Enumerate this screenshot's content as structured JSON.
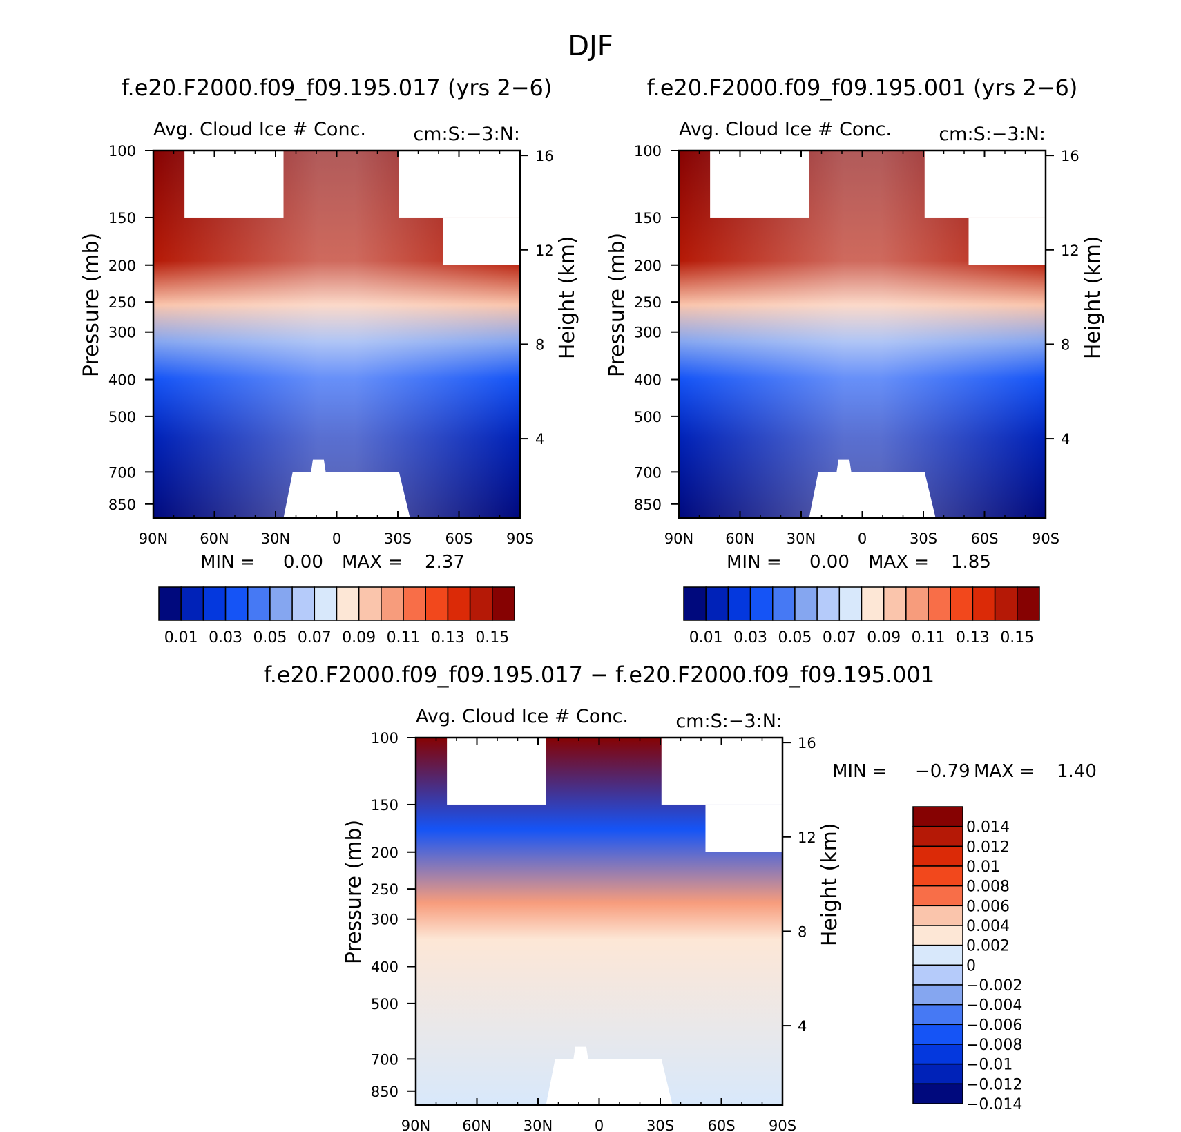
{
  "figure_title": "DJF",
  "panels": [
    {
      "title": "f.e20.F2000.f09_f09.195.017 (yrs 2−6)",
      "left_label": "Avg. Cloud Ice # Conc.",
      "right_label": "cm:S:−3:N:",
      "ylabel": "Pressure (mb)",
      "ylabel_right": "Height (km)",
      "min_label": "MIN =",
      "min_value": "0.00",
      "max_label": "MAX =",
      "max_value": "2.37"
    },
    {
      "title": "f.e20.F2000.f09_f09.195.001 (yrs 2−6)",
      "left_label": "Avg. Cloud Ice # Conc.",
      "right_label": "cm:S:−3:N:",
      "ylabel": "Pressure (mb)",
      "ylabel_right": "Height (km)",
      "min_label": "MIN =",
      "min_value": "0.00",
      "max_label": "MAX =",
      "max_value": "1.85"
    },
    {
      "title": "f.e20.F2000.f09_f09.195.017 − f.e20.F2000.f09_f09.195.001",
      "left_label": "Avg. Cloud Ice # Conc.",
      "right_label": "cm:S:−3:N:",
      "ylabel": "Pressure (mb)",
      "ylabel_right": "Height (km)",
      "min_label": "MIN =",
      "min_value": "−0.79",
      "max_label": "MAX =",
      "max_value": "1.40"
    }
  ],
  "axes": {
    "x_ticks": [
      "90N",
      "60N",
      "30N",
      "0",
      "30S",
      "60S",
      "90S"
    ],
    "pressure_ticks": [
      "100",
      "150",
      "200",
      "250",
      "300",
      "400",
      "500",
      "700",
      "850"
    ],
    "height_ticks": [
      "16",
      "12",
      "8",
      "4"
    ]
  },
  "colorbar_abs": {
    "labels": [
      "0.01",
      "0.03",
      "0.05",
      "0.07",
      "0.09",
      "0.11",
      "0.13",
      "0.15"
    ],
    "colors": [
      "#00097d",
      "#0022b8",
      "#0438de",
      "#1554f6",
      "#4679f4",
      "#85a6f0",
      "#b5cbfa",
      "#d8e8fb",
      "#fde7d6",
      "#fac5ac",
      "#f79c7c",
      "#f86e48",
      "#f2481c",
      "#db2a07",
      "#b51906",
      "#860202"
    ]
  },
  "colorbar_diff": {
    "labels": [
      "0.014",
      "0.012",
      "0.01",
      "0.008",
      "0.006",
      "0.004",
      "0.002",
      "0",
      "−0.002",
      "−0.004",
      "−0.006",
      "−0.008",
      "−0.01",
      "−0.012",
      "−0.014"
    ],
    "colors": [
      "#860202",
      "#b51906",
      "#db2a07",
      "#f2481c",
      "#f86e48",
      "#fac5ac",
      "#fde7d6",
      "#d8e8fb",
      "#b5cbfa",
      "#85a6f0",
      "#4679f4",
      "#1554f6",
      "#0438de",
      "#0022b8",
      "#00097d"
    ]
  },
  "chart_data": [
    {
      "type": "heatmap",
      "title": "f.e20.F2000.f09_f09.195.017 (yrs 2−6)",
      "xlabel": "",
      "ylabel": "Pressure (mb)",
      "x": [
        "90N",
        "60N",
        "30N",
        "0",
        "30S",
        "60S",
        "90S"
      ],
      "y": [
        100,
        150,
        200,
        250,
        300,
        400,
        500,
        700,
        850
      ],
      "zlim": [
        0.0,
        2.37
      ],
      "levels": [
        0.01,
        0.02,
        0.03,
        0.04,
        0.05,
        0.06,
        0.07,
        0.08,
        0.09,
        0.1,
        0.11,
        0.12,
        0.13,
        0.14,
        0.15
      ]
    },
    {
      "type": "heatmap",
      "title": "f.e20.F2000.f09_f09.195.001 (yrs 2−6)",
      "xlabel": "",
      "ylabel": "Pressure (mb)",
      "x": [
        "90N",
        "60N",
        "30N",
        "0",
        "30S",
        "60S",
        "90S"
      ],
      "y": [
        100,
        150,
        200,
        250,
        300,
        400,
        500,
        700,
        850
      ],
      "zlim": [
        0.0,
        1.85
      ],
      "levels": [
        0.01,
        0.02,
        0.03,
        0.04,
        0.05,
        0.06,
        0.07,
        0.08,
        0.09,
        0.1,
        0.11,
        0.12,
        0.13,
        0.14,
        0.15
      ]
    },
    {
      "type": "heatmap",
      "title": "f.e20.F2000.f09_f09.195.017 − f.e20.F2000.f09_f09.195.001",
      "xlabel": "",
      "ylabel": "Pressure (mb)",
      "x": [
        "90N",
        "60N",
        "30N",
        "0",
        "30S",
        "60S",
        "90S"
      ],
      "y": [
        100,
        150,
        200,
        250,
        300,
        400,
        500,
        700,
        850
      ],
      "zlim": [
        -0.79,
        1.4
      ],
      "levels": [
        -0.014,
        -0.012,
        -0.01,
        -0.008,
        -0.006,
        -0.004,
        -0.002,
        0,
        0.002,
        0.004,
        0.006,
        0.008,
        0.01,
        0.012,
        0.014
      ]
    }
  ]
}
